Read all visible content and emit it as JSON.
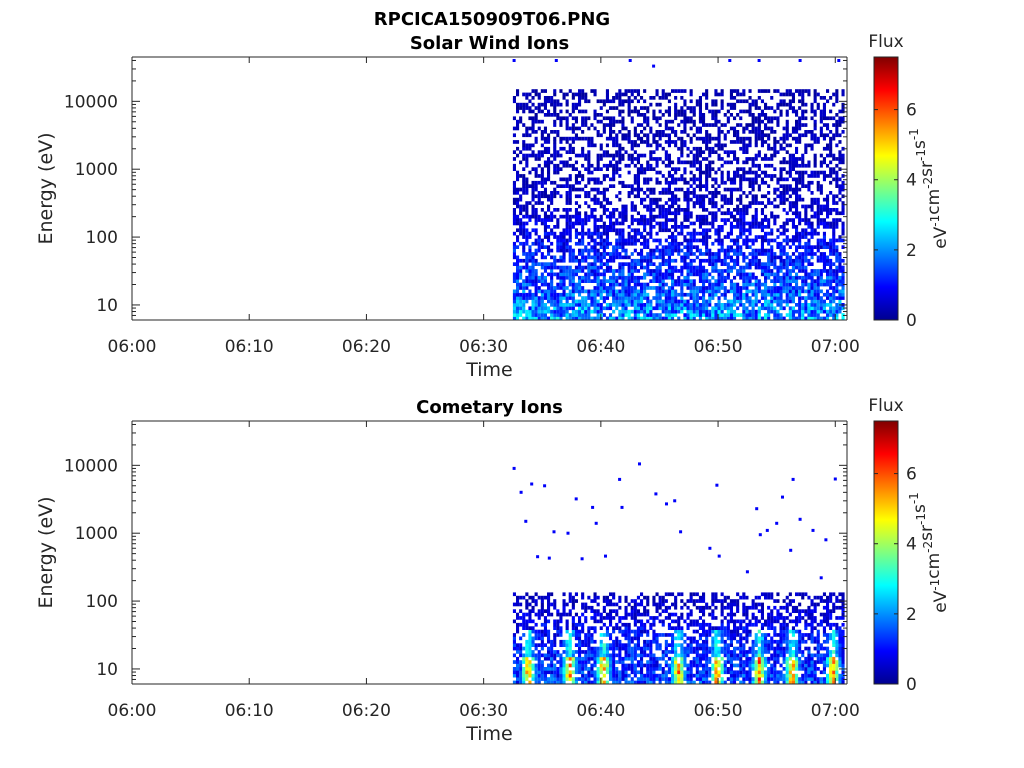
{
  "figure_title": "RPCICA150909T06.PNG",
  "chart_data": [
    {
      "type": "heatmap",
      "title": "Solar Wind Ions",
      "xlabel": "Time",
      "ylabel": "Energy (eV)",
      "x_ticks": [
        "06:00",
        "06:10",
        "06:20",
        "06:30",
        "06:40",
        "06:50",
        "07:00"
      ],
      "x_tick_minutes": [
        0,
        10,
        20,
        30,
        40,
        50,
        60
      ],
      "xlim_minutes": [
        0,
        61
      ],
      "yscale": "log",
      "ylim": [
        6,
        45000
      ],
      "y_ticks": [
        "10",
        "100",
        "1000",
        "10000"
      ],
      "y_tick_values": [
        10,
        100,
        1000,
        10000
      ],
      "data_start_minute": 32.5,
      "data_end_minute": 61,
      "colorbar": {
        "label": "Flux",
        "units": "eV-1cm-2sr-1s-1",
        "range": [
          0,
          7.5
        ],
        "ticks": [
          "0",
          "2",
          "4",
          "6"
        ],
        "tick_values": [
          0,
          2,
          4,
          6
        ]
      },
      "pattern": {
        "max_energy": 15000,
        "density_by_energy": [
          [
            6,
            0.9
          ],
          [
            30,
            0.75
          ],
          [
            100,
            0.6
          ],
          [
            400,
            0.5
          ],
          [
            15000,
            0.45
          ]
        ],
        "flux_by_energy": [
          [
            6,
            2.4
          ],
          [
            15,
            1.8
          ],
          [
            40,
            1.4
          ],
          [
            100,
            1.0
          ],
          [
            300,
            0.6
          ],
          [
            15000,
            0.4
          ]
        ],
        "isolated_points": [
          [
            32.6,
            40000
          ],
          [
            36.2,
            40000
          ],
          [
            42.5,
            40000
          ],
          [
            44.5,
            33000
          ],
          [
            51.0,
            40000
          ],
          [
            53.5,
            40000
          ],
          [
            57.0,
            40000
          ],
          [
            60.3,
            40000
          ]
        ]
      }
    },
    {
      "type": "heatmap",
      "title": "Cometary Ions",
      "xlabel": "Time",
      "ylabel": "Energy (eV)",
      "x_ticks": [
        "06:00",
        "06:10",
        "06:20",
        "06:30",
        "06:40",
        "06:50",
        "07:00"
      ],
      "x_tick_minutes": [
        0,
        10,
        20,
        30,
        40,
        50,
        60
      ],
      "xlim_minutes": [
        0,
        61
      ],
      "yscale": "log",
      "ylim": [
        6,
        45000
      ],
      "y_ticks": [
        "10",
        "100",
        "1000",
        "10000"
      ],
      "y_tick_values": [
        10,
        100,
        1000,
        10000
      ],
      "data_start_minute": 32.5,
      "data_end_minute": 61,
      "colorbar": {
        "label": "Flux",
        "units": "eV-1cm-2sr-1s-1",
        "range": [
          0,
          7.5
        ],
        "ticks": [
          "0",
          "2",
          "4",
          "6"
        ],
        "tick_values": [
          0,
          2,
          4,
          6
        ]
      },
      "pattern": {
        "max_energy": 130,
        "density_by_energy": [
          [
            6,
            0.85
          ],
          [
            20,
            0.75
          ],
          [
            50,
            0.55
          ],
          [
            130,
            0.45
          ]
        ],
        "flux_by_energy": [
          [
            6,
            1.6
          ],
          [
            15,
            1.4
          ],
          [
            40,
            1.0
          ],
          [
            130,
            0.5
          ]
        ],
        "bursts_minutes": [
          33.7,
          37.2,
          40.1,
          46.5,
          49.8,
          53.4,
          56.2,
          59.7
        ],
        "burst_peak_flux": 6.0,
        "isolated_points": [
          [
            32.6,
            9000
          ],
          [
            33.2,
            4000
          ],
          [
            33.6,
            1500
          ],
          [
            34.1,
            5300
          ],
          [
            35.2,
            5000
          ],
          [
            36.0,
            1050
          ],
          [
            37.2,
            1000
          ],
          [
            37.9,
            3200
          ],
          [
            39.3,
            2400
          ],
          [
            38.4,
            420
          ],
          [
            39.6,
            1400
          ],
          [
            40.4,
            460
          ],
          [
            41.6,
            6200
          ],
          [
            41.8,
            2400
          ],
          [
            43.3,
            10500
          ],
          [
            44.7,
            3800
          ],
          [
            45.6,
            2700
          ],
          [
            46.3,
            3000
          ],
          [
            46.8,
            1050
          ],
          [
            49.3,
            600
          ],
          [
            49.9,
            5100
          ],
          [
            50.1,
            460
          ],
          [
            52.5,
            270
          ],
          [
            53.3,
            2300
          ],
          [
            53.6,
            950
          ],
          [
            54.2,
            1100
          ],
          [
            55.0,
            1400
          ],
          [
            55.5,
            3400
          ],
          [
            56.2,
            560
          ],
          [
            56.4,
            6200
          ],
          [
            57.0,
            1600
          ],
          [
            58.1,
            1100
          ],
          [
            58.8,
            220
          ],
          [
            59.2,
            800
          ],
          [
            60.0,
            6300
          ],
          [
            34.6,
            450
          ],
          [
            35.6,
            430
          ]
        ]
      }
    }
  ]
}
